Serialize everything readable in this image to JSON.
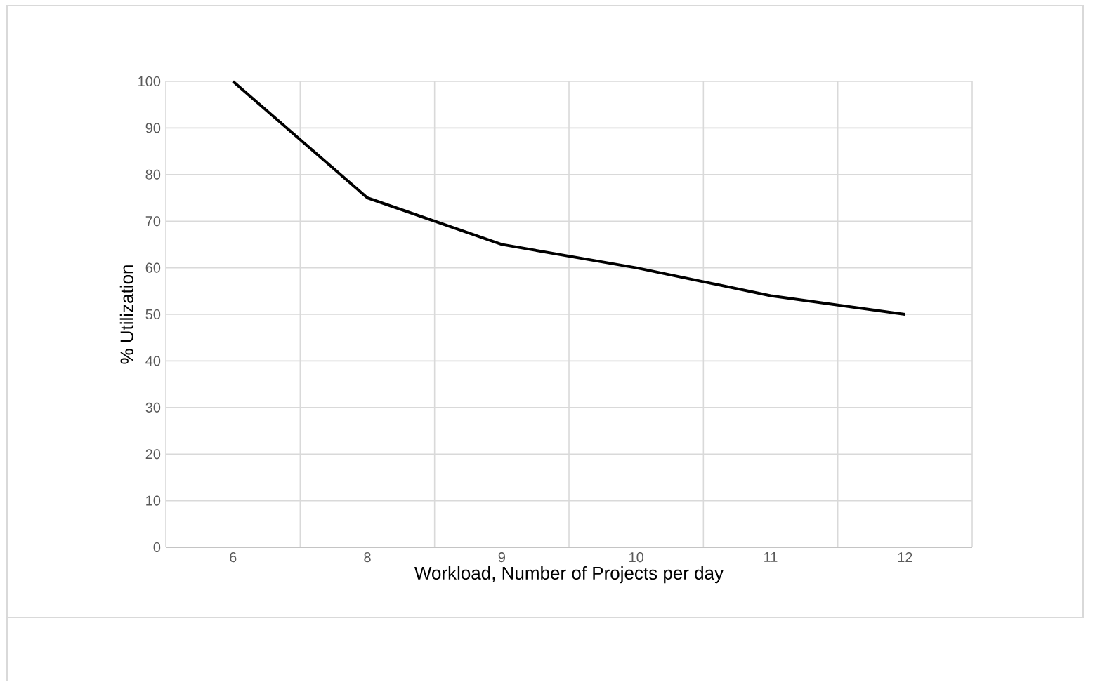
{
  "chart_data": {
    "type": "line",
    "xlabel": "Workload, Number of Projects per day",
    "ylabel": "% Utilization",
    "categories": [
      "6",
      "8",
      "9",
      "10",
      "11",
      "12"
    ],
    "series": [
      {
        "color": "#000000",
        "values": [
          100,
          75,
          65,
          60,
          54,
          50
        ]
      }
    ],
    "ylim": [
      0,
      100
    ],
    "yticks": [
      0,
      10,
      20,
      30,
      40,
      50,
      60,
      70,
      80,
      90,
      100
    ],
    "grid": true,
    "marker": "none",
    "line_style": "solid"
  }
}
